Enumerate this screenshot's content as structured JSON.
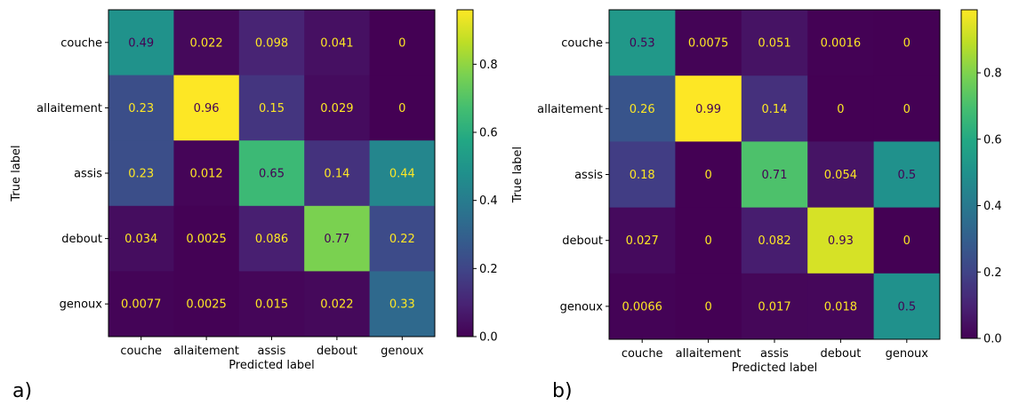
{
  "chart_data": [
    {
      "type": "heatmap",
      "panel_label": "a)",
      "xlabel": "Predicted label",
      "ylabel": "True label",
      "categories": [
        "couche",
        "allaitement",
        "assis",
        "debout",
        "genoux"
      ],
      "cells": [
        [
          "0.49",
          "0.022",
          "0.098",
          "0.041",
          "0"
        ],
        [
          "0.23",
          "0.96",
          "0.15",
          "0.029",
          "0"
        ],
        [
          "0.23",
          "0.012",
          "0.65",
          "0.14",
          "0.44"
        ],
        [
          "0.034",
          "0.0025",
          "0.086",
          "0.77",
          "0.22"
        ],
        [
          "0.0077",
          "0.0025",
          "0.015",
          "0.022",
          "0.33"
        ]
      ],
      "colorbar": {
        "min": 0,
        "max": 0.96,
        "ticks": [
          "0.0",
          "0.2",
          "0.4",
          "0.6",
          "0.8"
        ],
        "colormap": "viridis"
      },
      "text_colors": {
        "dark_cell": "#fde725",
        "light_cell": "#440154"
      }
    },
    {
      "type": "heatmap",
      "panel_label": "b)",
      "xlabel": "Predicted label",
      "ylabel": "True label",
      "categories": [
        "couche",
        "allaitement",
        "assis",
        "debout",
        "genoux"
      ],
      "cells": [
        [
          "0.53",
          "0.0075",
          "0.051",
          "0.0016",
          "0"
        ],
        [
          "0.26",
          "0.99",
          "0.14",
          "0",
          "0"
        ],
        [
          "0.18",
          "0",
          "0.71",
          "0.054",
          "0.5"
        ],
        [
          "0.027",
          "0",
          "0.082",
          "0.93",
          "0"
        ],
        [
          "0.0066",
          "0",
          "0.017",
          "0.018",
          "0.5"
        ]
      ],
      "colorbar": {
        "min": 0,
        "max": 0.99,
        "ticks": [
          "0.0",
          "0.2",
          "0.4",
          "0.6",
          "0.8"
        ],
        "colormap": "viridis"
      },
      "text_colors": {
        "dark_cell": "#fde725",
        "light_cell": "#440154"
      }
    }
  ]
}
